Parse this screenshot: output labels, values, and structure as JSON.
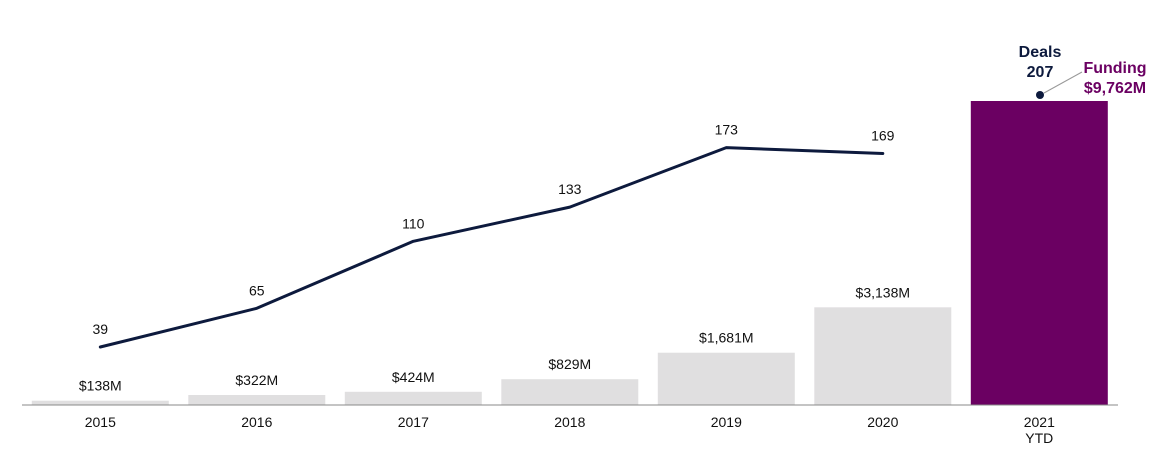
{
  "chart_data": {
    "type": "bar",
    "categories": [
      "2015",
      "2016",
      "2017",
      "2018",
      "2019",
      "2020",
      "2021 YTD"
    ],
    "category_lines": [
      [
        "2015"
      ],
      [
        "2016"
      ],
      [
        "2017"
      ],
      [
        "2018"
      ],
      [
        "2019"
      ],
      [
        "2020"
      ],
      [
        "2021",
        "YTD"
      ]
    ],
    "series": [
      {
        "name": "Funding",
        "type": "bar",
        "values": [
          138,
          322,
          424,
          829,
          1681,
          3138,
          9762
        ],
        "labels": [
          "$138M",
          "$322M",
          "$424M",
          "$829M",
          "$1,681M",
          "$3,138M",
          "$9,762M"
        ],
        "unit": "$M"
      },
      {
        "name": "Deals",
        "type": "line",
        "values": [
          39,
          65,
          110,
          133,
          173,
          169,
          207
        ],
        "labels": [
          "39",
          "65",
          "110",
          "133",
          "173",
          "169",
          "207"
        ]
      }
    ],
    "legend": {
      "deals_label": "Deals",
      "deals_value": "207",
      "funding_label": "Funding",
      "funding_value": "$9,762M"
    },
    "colors": {
      "bar_default": "#e0dfe0",
      "bar_highlight": "#6b0062",
      "line": "#0d1a3d",
      "funding_text": "#6b0062",
      "deals_text": "#0d1a3d"
    },
    "highlight_index": 6,
    "title": "",
    "xlabel": "",
    "ylabel": ""
  }
}
